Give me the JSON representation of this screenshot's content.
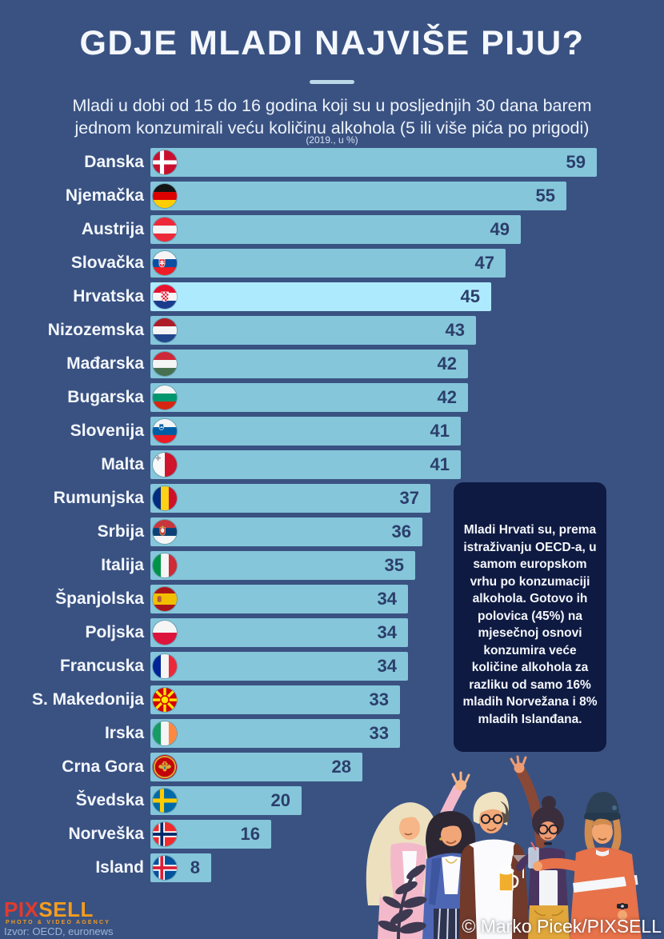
{
  "page": {
    "background_color": "#3a5282",
    "title": "GDJE MLADI NAJVIŠE PIJU?",
    "subtitle_line1": "Mladi u dobi od 15 do 16 godina koji su u posljednjih 30 dana barem",
    "subtitle_line2": "jednom konzumirali veću količinu alkohola (5 ili više pića po prigodi)",
    "note": "(2019., u %)"
  },
  "chart_data": {
    "type": "bar",
    "orientation": "horizontal",
    "unit": "%",
    "year": "2019",
    "xlim": [
      0,
      62
    ],
    "categories": [
      "Danska",
      "Njemačka",
      "Austrija",
      "Slovačka",
      "Hrvatska",
      "Nizozemska",
      "Mađarska",
      "Bugarska",
      "Slovenija",
      "Malta",
      "Rumunjska",
      "Srbija",
      "Italija",
      "Španjolska",
      "Poljska",
      "Francuska",
      "S. Makedonija",
      "Irska",
      "Crna Gora",
      "Švedska",
      "Norveška",
      "Island"
    ],
    "values": [
      59,
      55,
      49,
      47,
      45,
      43,
      42,
      42,
      41,
      41,
      37,
      36,
      35,
      34,
      34,
      34,
      33,
      33,
      28,
      20,
      16,
      8
    ],
    "flags": [
      "denmark",
      "germany",
      "austria",
      "slovakia",
      "croatia",
      "netherlands",
      "hungary",
      "bulgaria",
      "slovenia",
      "malta",
      "romania",
      "serbia",
      "italy",
      "spain",
      "poland",
      "france",
      "north-macedonia",
      "ireland",
      "montenegro",
      "sweden",
      "norway",
      "iceland"
    ],
    "highlight_category": "Hrvatska",
    "bar_color": "#85c6da",
    "highlight_bar_color": "#aeeafd",
    "value_color": "#2c3e6b"
  },
  "callout": {
    "flag": "croatia",
    "background_color": "#0e1a41",
    "text": "Mladi Hrvati su, prema istraživanju OECD-a, u samom europskom vrhu po konzumaciji alkohola.  Gotovo ih polovica (45%) na mjesečnoj osnovi konzumira veće količine alkohola za razliku od samo 16% mladih Norvežana i 8% mladih Islanđana."
  },
  "footer": {
    "logo_part1": "PIX",
    "logo_part2": "SELL",
    "logo_tagline": "PHOTO & VIDEO AGENCY",
    "source": "Izvor: OECD, euronews",
    "credit": "© Marko Picek/PIXSELL"
  }
}
